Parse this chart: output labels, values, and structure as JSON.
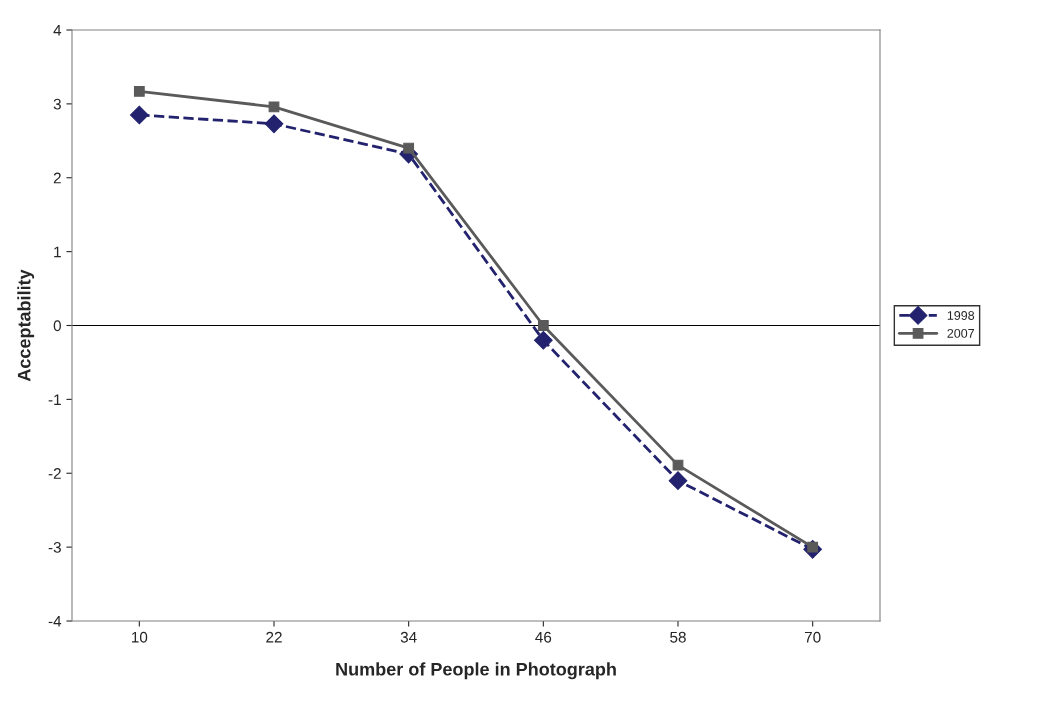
{
  "chart_data": {
    "type": "line",
    "xlabel": "Number of People in Photograph",
    "ylabel": "Acceptability",
    "categories": [
      "10",
      "22",
      "34",
      "46",
      "58",
      "70"
    ],
    "series": [
      {
        "name": "1998",
        "color": "#22226e",
        "marker": "diamond",
        "line_style": "dashed",
        "values": [
          2.85,
          2.73,
          2.32,
          -0.2,
          -2.1,
          -3.03
        ]
      },
      {
        "name": "2007",
        "color": "#5a5a5a",
        "marker": "square",
        "line_style": "solid",
        "values": [
          3.17,
          2.96,
          2.4,
          0,
          -1.89,
          -3.0
        ]
      }
    ],
    "ylim": [
      -4,
      4
    ],
    "yticks": [
      -4,
      -3,
      -2,
      -1,
      0,
      1,
      2,
      3,
      4
    ],
    "ref_lines": [
      {
        "axis": "y",
        "value": 0,
        "color": "#000000"
      }
    ],
    "grid": false,
    "legend": "right"
  }
}
